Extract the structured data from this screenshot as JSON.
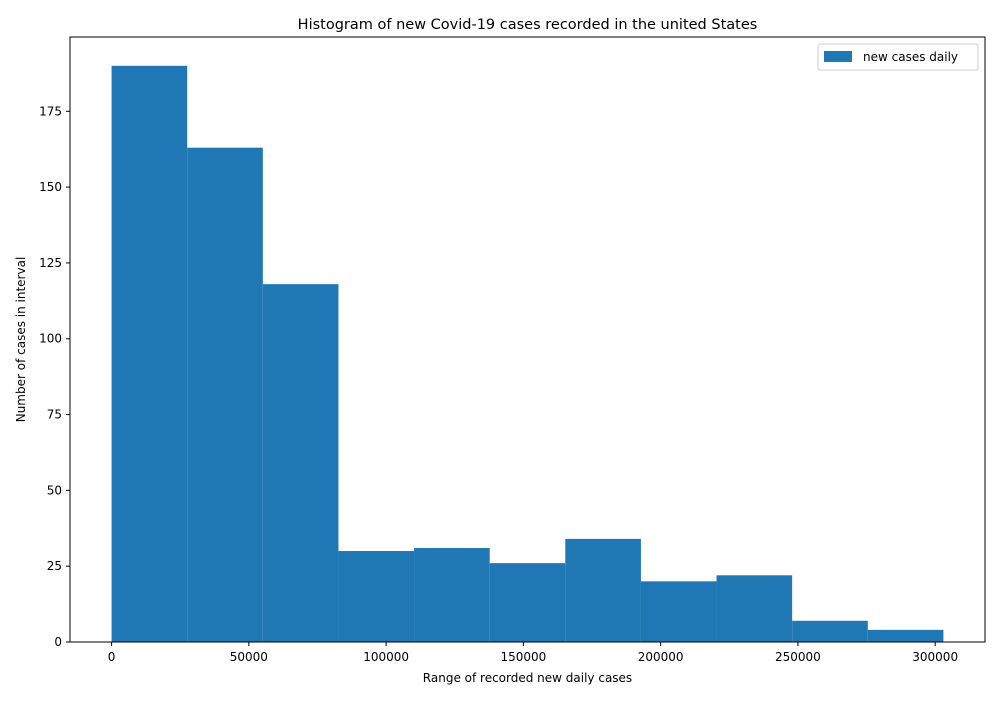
{
  "chart_data": {
    "type": "bar",
    "title": "Histogram of new Covid-19 cases recorded in the united States",
    "xlabel": "Range of recorded new daily cases",
    "ylabel": "Number of cases in interval",
    "xlim": [
      -15150,
      318150
    ],
    "ylim": [
      0,
      199.5
    ],
    "x_ticks": [
      0,
      50000,
      100000,
      150000,
      200000,
      250000,
      300000
    ],
    "x_tick_labels": [
      "0",
      "50000",
      "100000",
      "150000",
      "200000",
      "250000",
      "300000"
    ],
    "y_ticks": [
      0,
      25,
      50,
      75,
      100,
      125,
      150,
      175
    ],
    "y_tick_labels": [
      "0",
      "25",
      "50",
      "75",
      "100",
      "125",
      "150",
      "175"
    ],
    "bin_edges": [
      0,
      27545,
      55090,
      82635,
      110180,
      137725,
      165270,
      192815,
      220360,
      247905,
      275450,
      302995
    ],
    "series": [
      {
        "name": "new cases daily",
        "values": [
          190,
          163,
          118,
          30,
          31,
          26,
          34,
          20,
          22,
          7,
          4
        ]
      }
    ],
    "grid": false,
    "legend_position": "top-right",
    "bar_color": "#1f77b4"
  }
}
